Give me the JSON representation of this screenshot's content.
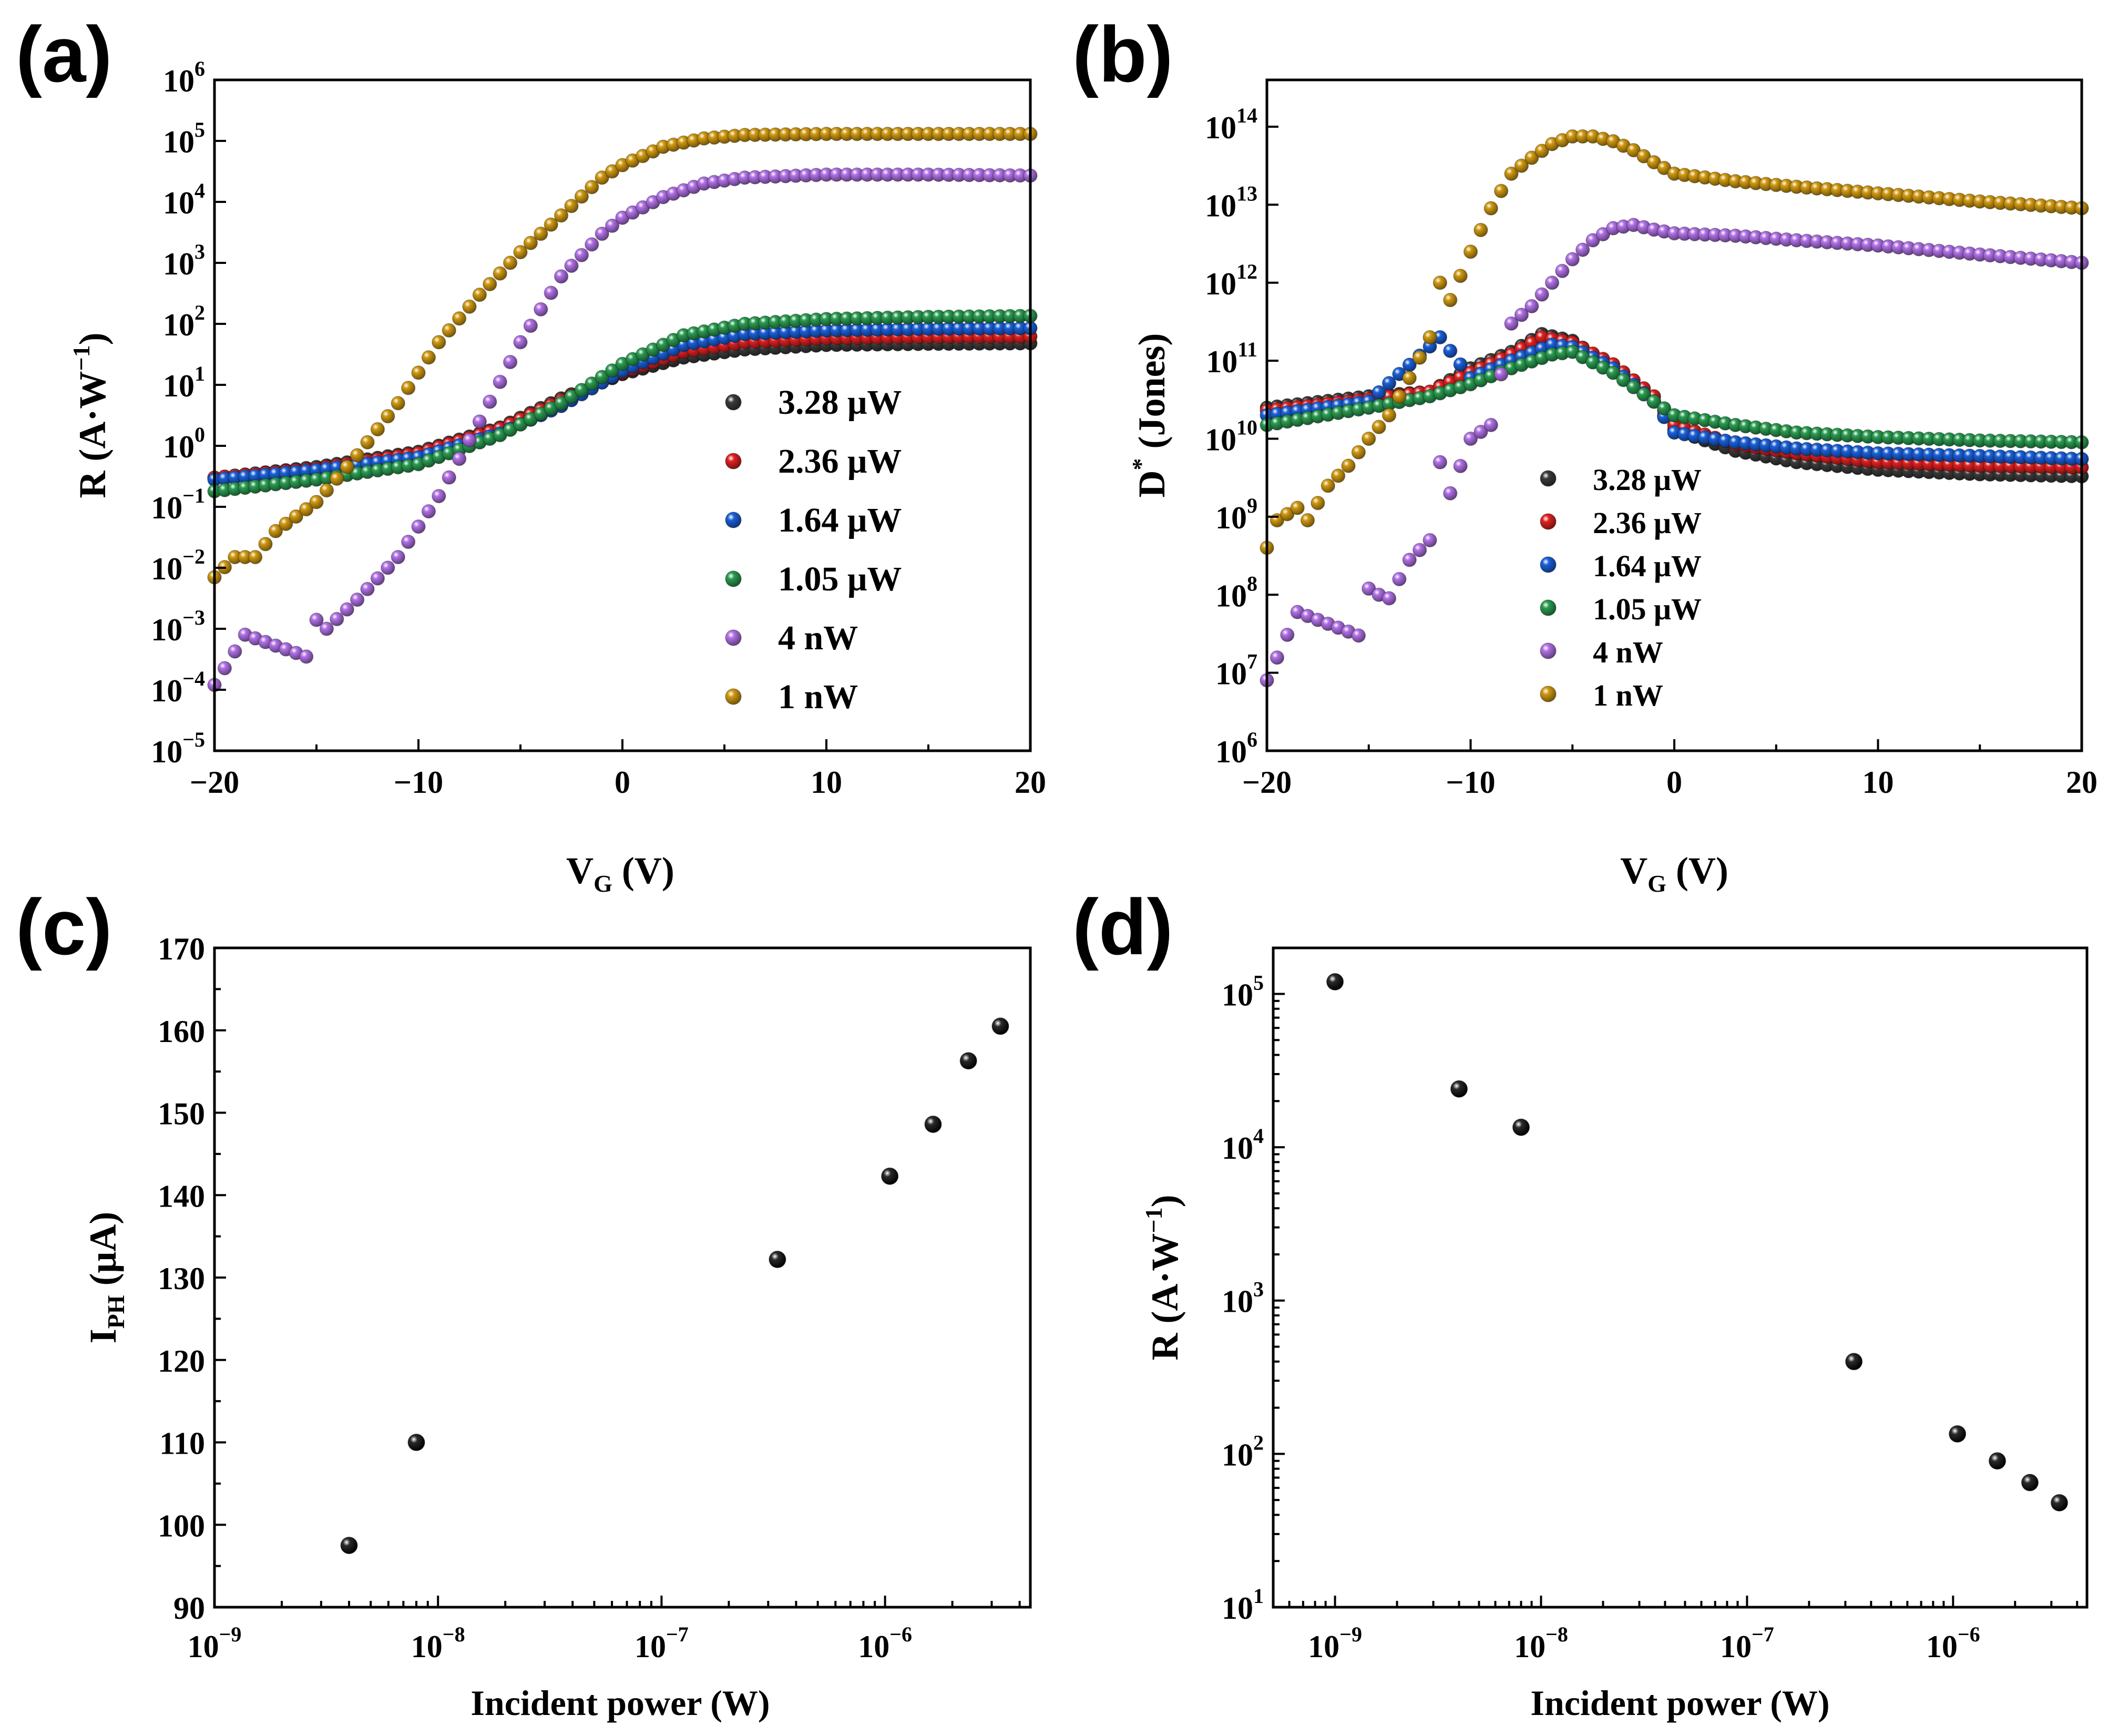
{
  "figure": {
    "colors": {
      "3.28 μW": "#3a3a3a",
      "2.36 μW": "#e02020",
      "1.64 μW": "#1a5fd8",
      "1.05 μW": "#2a9a50",
      "4 nW": "#b070e6",
      "1 nW": "#cf9810"
    }
  },
  "chart_data": [
    {
      "panel": "(a)",
      "type": "scatter",
      "xlabel_main": "V",
      "xlabel_sub": "G",
      "xlabel_unit": "(V)",
      "ylabel_main": "R (A·W",
      "ylabel_sup": "−1",
      "ylabel_end": ")",
      "xlim": [
        -20,
        20
      ],
      "ylim_log10": [
        -5,
        6
      ],
      "yscale": "log",
      "x_ticks": [
        -20,
        -10,
        0,
        10,
        20
      ],
      "x_tick_labels": [
        "−20",
        "−10",
        "0",
        "10",
        "20"
      ],
      "y_ticks_log10": [
        -5,
        -4,
        -3,
        -2,
        -1,
        0,
        1,
        2,
        3,
        4,
        5,
        6
      ],
      "y_tick_labels": [
        "−5",
        "−4",
        "−3",
        "−2",
        "−1",
        "0",
        "1",
        "2",
        "3",
        "4",
        "5",
        "6"
      ],
      "legend_position": "center-right",
      "series": [
        {
          "name": "3.28 μW",
          "legend": "3.28 μW",
          "x": [
            -20,
            -15,
            -10,
            -6,
            -3,
            0,
            3,
            6,
            10,
            15,
            20
          ],
          "y": [
            0.3,
            0.45,
            0.8,
            2.0,
            6.0,
            15,
            28,
            38,
            45,
            47,
            48
          ]
        },
        {
          "name": "2.36 μW",
          "legend": "2.36 μW",
          "x": [
            -20,
            -15,
            -10,
            -6,
            -3,
            0,
            3,
            6,
            10,
            15,
            20
          ],
          "y": [
            0.3,
            0.42,
            0.75,
            1.9,
            5.5,
            16,
            35,
            50,
            58,
            61,
            62
          ]
        },
        {
          "name": "1.64 μW",
          "legend": "1.64 μW",
          "x": [
            -20,
            -15,
            -10,
            -6,
            -3,
            0,
            3,
            6,
            10,
            15,
            20
          ],
          "y": [
            0.28,
            0.4,
            0.65,
            1.6,
            4.5,
            17,
            45,
            68,
            78,
            83,
            85
          ]
        },
        {
          "name": "1.05 μW",
          "legend": "1.05 μW",
          "x": [
            -20,
            -15,
            -10,
            -6,
            -3,
            0,
            3,
            6,
            10,
            15,
            20
          ],
          "y": [
            0.18,
            0.28,
            0.5,
            1.5,
            5.0,
            22,
            65,
            100,
            120,
            130,
            135
          ]
        },
        {
          "name": "4 nW",
          "legend": "4 nW",
          "x": [
            -20,
            -18.5,
            -15.5,
            -15,
            -14.5,
            -13,
            -11,
            -9,
            -7,
            -5,
            -3,
            -1,
            0,
            2,
            4,
            6,
            10,
            15,
            20
          ],
          "y": [
            0.00012,
            0.0008,
            0.00035,
            0.0014,
            0.001,
            0.003,
            0.015,
            0.15,
            2.5,
            50,
            600,
            3000,
            5500,
            12000,
            20000,
            25000,
            28000,
            28000,
            27000
          ]
        },
        {
          "name": "1 nW",
          "legend": "1 nW",
          "x": [
            -20,
            -19,
            -18,
            -17,
            -15,
            -13,
            -11,
            -9,
            -7,
            -5,
            -3,
            -1,
            0,
            2,
            4,
            6,
            10,
            15,
            20
          ],
          "y": [
            0.007,
            0.015,
            0.015,
            0.04,
            0.12,
            0.7,
            5,
            50,
            300,
            1500,
            6000,
            25000,
            40000,
            80000,
            110000,
            125000,
            130000,
            130000,
            130000
          ]
        }
      ]
    },
    {
      "panel": "(b)",
      "type": "scatter",
      "xlabel_main": "V",
      "xlabel_sub": "G",
      "xlabel_unit": "(V)",
      "ylabel_main": "D",
      "ylabel_sup": "*",
      "ylabel_end": " (Jones)",
      "xlim": [
        -20,
        20
      ],
      "ylim_log10": [
        6,
        14.6
      ],
      "yscale": "log",
      "x_ticks": [
        -20,
        -10,
        0,
        10,
        20
      ],
      "x_tick_labels": [
        "−20",
        "−10",
        "0",
        "10",
        "20"
      ],
      "y_ticks_log10": [
        6,
        7,
        8,
        9,
        10,
        11,
        12,
        13,
        14
      ],
      "y_tick_labels": [
        "6",
        "7",
        "8",
        "9",
        "10",
        "11",
        "12",
        "13",
        "14"
      ],
      "legend_position": "lower-left",
      "series": [
        {
          "name": "3.28 μW",
          "legend": "3.28 μW",
          "x": [
            -20,
            -15,
            -12,
            -10,
            -8,
            -6.5,
            -5,
            -3,
            -1,
            0,
            3,
            6,
            10,
            15,
            20
          ],
          "y": [
            25000000000.0,
            35000000000.0,
            40000000000.0,
            80000000000.0,
            130000000000.0,
            220000000000.0,
            180000000000.0,
            80000000000.0,
            30000000000.0,
            13000000000.0,
            7000000000.0,
            5000000000.0,
            4000000000.0,
            3500000000.0,
            3300000000.0
          ]
        },
        {
          "name": "2.36 μW",
          "legend": "2.36 μW",
          "x": [
            -20,
            -15,
            -12,
            -10,
            -8,
            -6.5,
            -5,
            -3,
            -1,
            0,
            3,
            6,
            10,
            15,
            20
          ],
          "y": [
            23000000000.0,
            32000000000.0,
            40000000000.0,
            70000000000.0,
            120000000000.0,
            200000000000.0,
            170000000000.0,
            90000000000.0,
            35000000000.0,
            15000000000.0,
            8500000000.0,
            6500000000.0,
            5000000000.0,
            4500000000.0,
            4300000000.0
          ]
        },
        {
          "name": "1.64 μW",
          "legend": "1.64 μW",
          "x": [
            -20,
            -15,
            -11.5,
            -10,
            -8,
            -6,
            -5,
            -3,
            -1,
            0,
            3,
            6,
            10,
            15,
            20
          ],
          "y": [
            20000000000.0,
            30000000000.0,
            200000000000.0,
            60000000000.0,
            100000000000.0,
            160000000000.0,
            150000000000.0,
            80000000000.0,
            30000000000.0,
            12000000000.0,
            9000000000.0,
            7500000000.0,
            6500000000.0,
            6000000000.0,
            5500000000.0
          ]
        },
        {
          "name": "1.05 μW",
          "legend": "1.05 μW",
          "x": [
            -20,
            -15,
            -12,
            -10,
            -8,
            -6,
            -5,
            -3,
            -1,
            0,
            3,
            6,
            10,
            15,
            20
          ],
          "y": [
            15000000000.0,
            25000000000.0,
            35000000000.0,
            50000000000.0,
            80000000000.0,
            120000000000.0,
            130000000000.0,
            70000000000.0,
            30000000000.0,
            20000000000.0,
            15000000000.0,
            12000000000.0,
            10500000000.0,
            9500000000.0,
            9000000000.0
          ]
        },
        {
          "name": "4 nW",
          "legend": "4 nW",
          "x": [
            -20,
            -18.5,
            -15.5,
            -15,
            -14.5,
            -14,
            -13,
            -12,
            -11.5,
            -11,
            -10,
            -9,
            -8,
            -7,
            -6,
            -5,
            -4,
            -3,
            -2,
            -1,
            0,
            3,
            6,
            10,
            15,
            20
          ],
          "y": [
            8000000.0,
            60000000.0,
            30000000.0,
            120000000.0,
            100000000.0,
            90000000.0,
            280000000.0,
            500000000.0,
            5000000000.0,
            2000000000.0,
            10000000000.0,
            15000000000.0,
            300000000000.0,
            500000000000.0,
            1000000000000.0,
            2000000000000.0,
            3500000000000.0,
            5000000000000.0,
            5500000000000.0,
            4800000000000.0,
            4300000000000.0,
            4000000000000.0,
            3500000000000.0,
            3000000000000.0,
            2300000000000.0,
            1800000000000.0
          ]
        },
        {
          "name": "1 nW",
          "legend": "1 nW",
          "x": [
            -20,
            -19.5,
            -18.5,
            -18,
            -17,
            -16,
            -15,
            -14,
            -13,
            -12,
            -11.5,
            -11,
            -10,
            -9,
            -8,
            -7,
            -6,
            -5,
            -4,
            -3,
            -2,
            -1,
            0,
            3,
            6,
            10,
            15,
            20
          ],
          "y": [
            400000000.0,
            900000000.0,
            1300000000.0,
            900000000.0,
            2500000000.0,
            4500000000.0,
            10000000000.0,
            20000000000.0,
            60000000000.0,
            200000000000.0,
            1000000000000.0,
            600000000000.0,
            2500000000000.0,
            9000000000000.0,
            25000000000000.0,
            40000000000000.0,
            60000000000000.0,
            75000000000000.0,
            75000000000000.0,
            65000000000000.0,
            50000000000000.0,
            35000000000000.0,
            25000000000000.0,
            20000000000000.0,
            17000000000000.0,
            14000000000000.0,
            11000000000000.0,
            9000000000000.0
          ]
        }
      ]
    },
    {
      "panel": "(c)",
      "type": "scatter",
      "xlabel": "Incident power (W)",
      "ylabel_main": "I",
      "ylabel_sub": "PH",
      "ylabel_end": " (μA)",
      "xscale": "log",
      "xlim_log10": [
        -9,
        -5.35
      ],
      "ylim": [
        90,
        170
      ],
      "x_ticks_log10": [
        -9,
        -8,
        -7,
        -6
      ],
      "x_tick_labels": [
        "−9",
        "−8",
        "−7",
        "−6"
      ],
      "y_ticks": [
        90,
        100,
        110,
        120,
        130,
        140,
        150,
        160,
        170
      ],
      "y_tick_labels": [
        "90",
        "100",
        "110",
        "120",
        "130",
        "140",
        "150",
        "160",
        "170"
      ],
      "x": [
        4e-09,
        8e-09,
        3.3e-07,
        1.05e-06,
        1.64e-06,
        2.36e-06,
        3.28e-06
      ],
      "y": [
        97.5,
        110,
        132.2,
        142.3,
        148.6,
        156.3,
        160.5
      ]
    },
    {
      "panel": "(d)",
      "type": "scatter",
      "xlabel": "Incident power (W)",
      "ylabel_main": "R (A·W",
      "ylabel_sup": "−1",
      "ylabel_end": ")",
      "xscale": "log",
      "yscale": "log",
      "xlim_log10": [
        -9.3,
        -5.35
      ],
      "ylim_log10": [
        1,
        5.3
      ],
      "x_ticks_log10": [
        -9,
        -8,
        -7,
        -6
      ],
      "x_tick_labels": [
        "−9",
        "−8",
        "−7",
        "−6"
      ],
      "y_ticks_log10": [
        1,
        2,
        3,
        4,
        5
      ],
      "y_tick_labels": [
        "1",
        "2",
        "3",
        "4",
        "5"
      ],
      "x": [
        1e-09,
        4e-09,
        8e-09,
        3.3e-07,
        1.05e-06,
        1.64e-06,
        2.36e-06,
        3.28e-06
      ],
      "y": [
        120000,
        24000,
        13500,
        400,
        135,
        90,
        65,
        48
      ]
    }
  ]
}
